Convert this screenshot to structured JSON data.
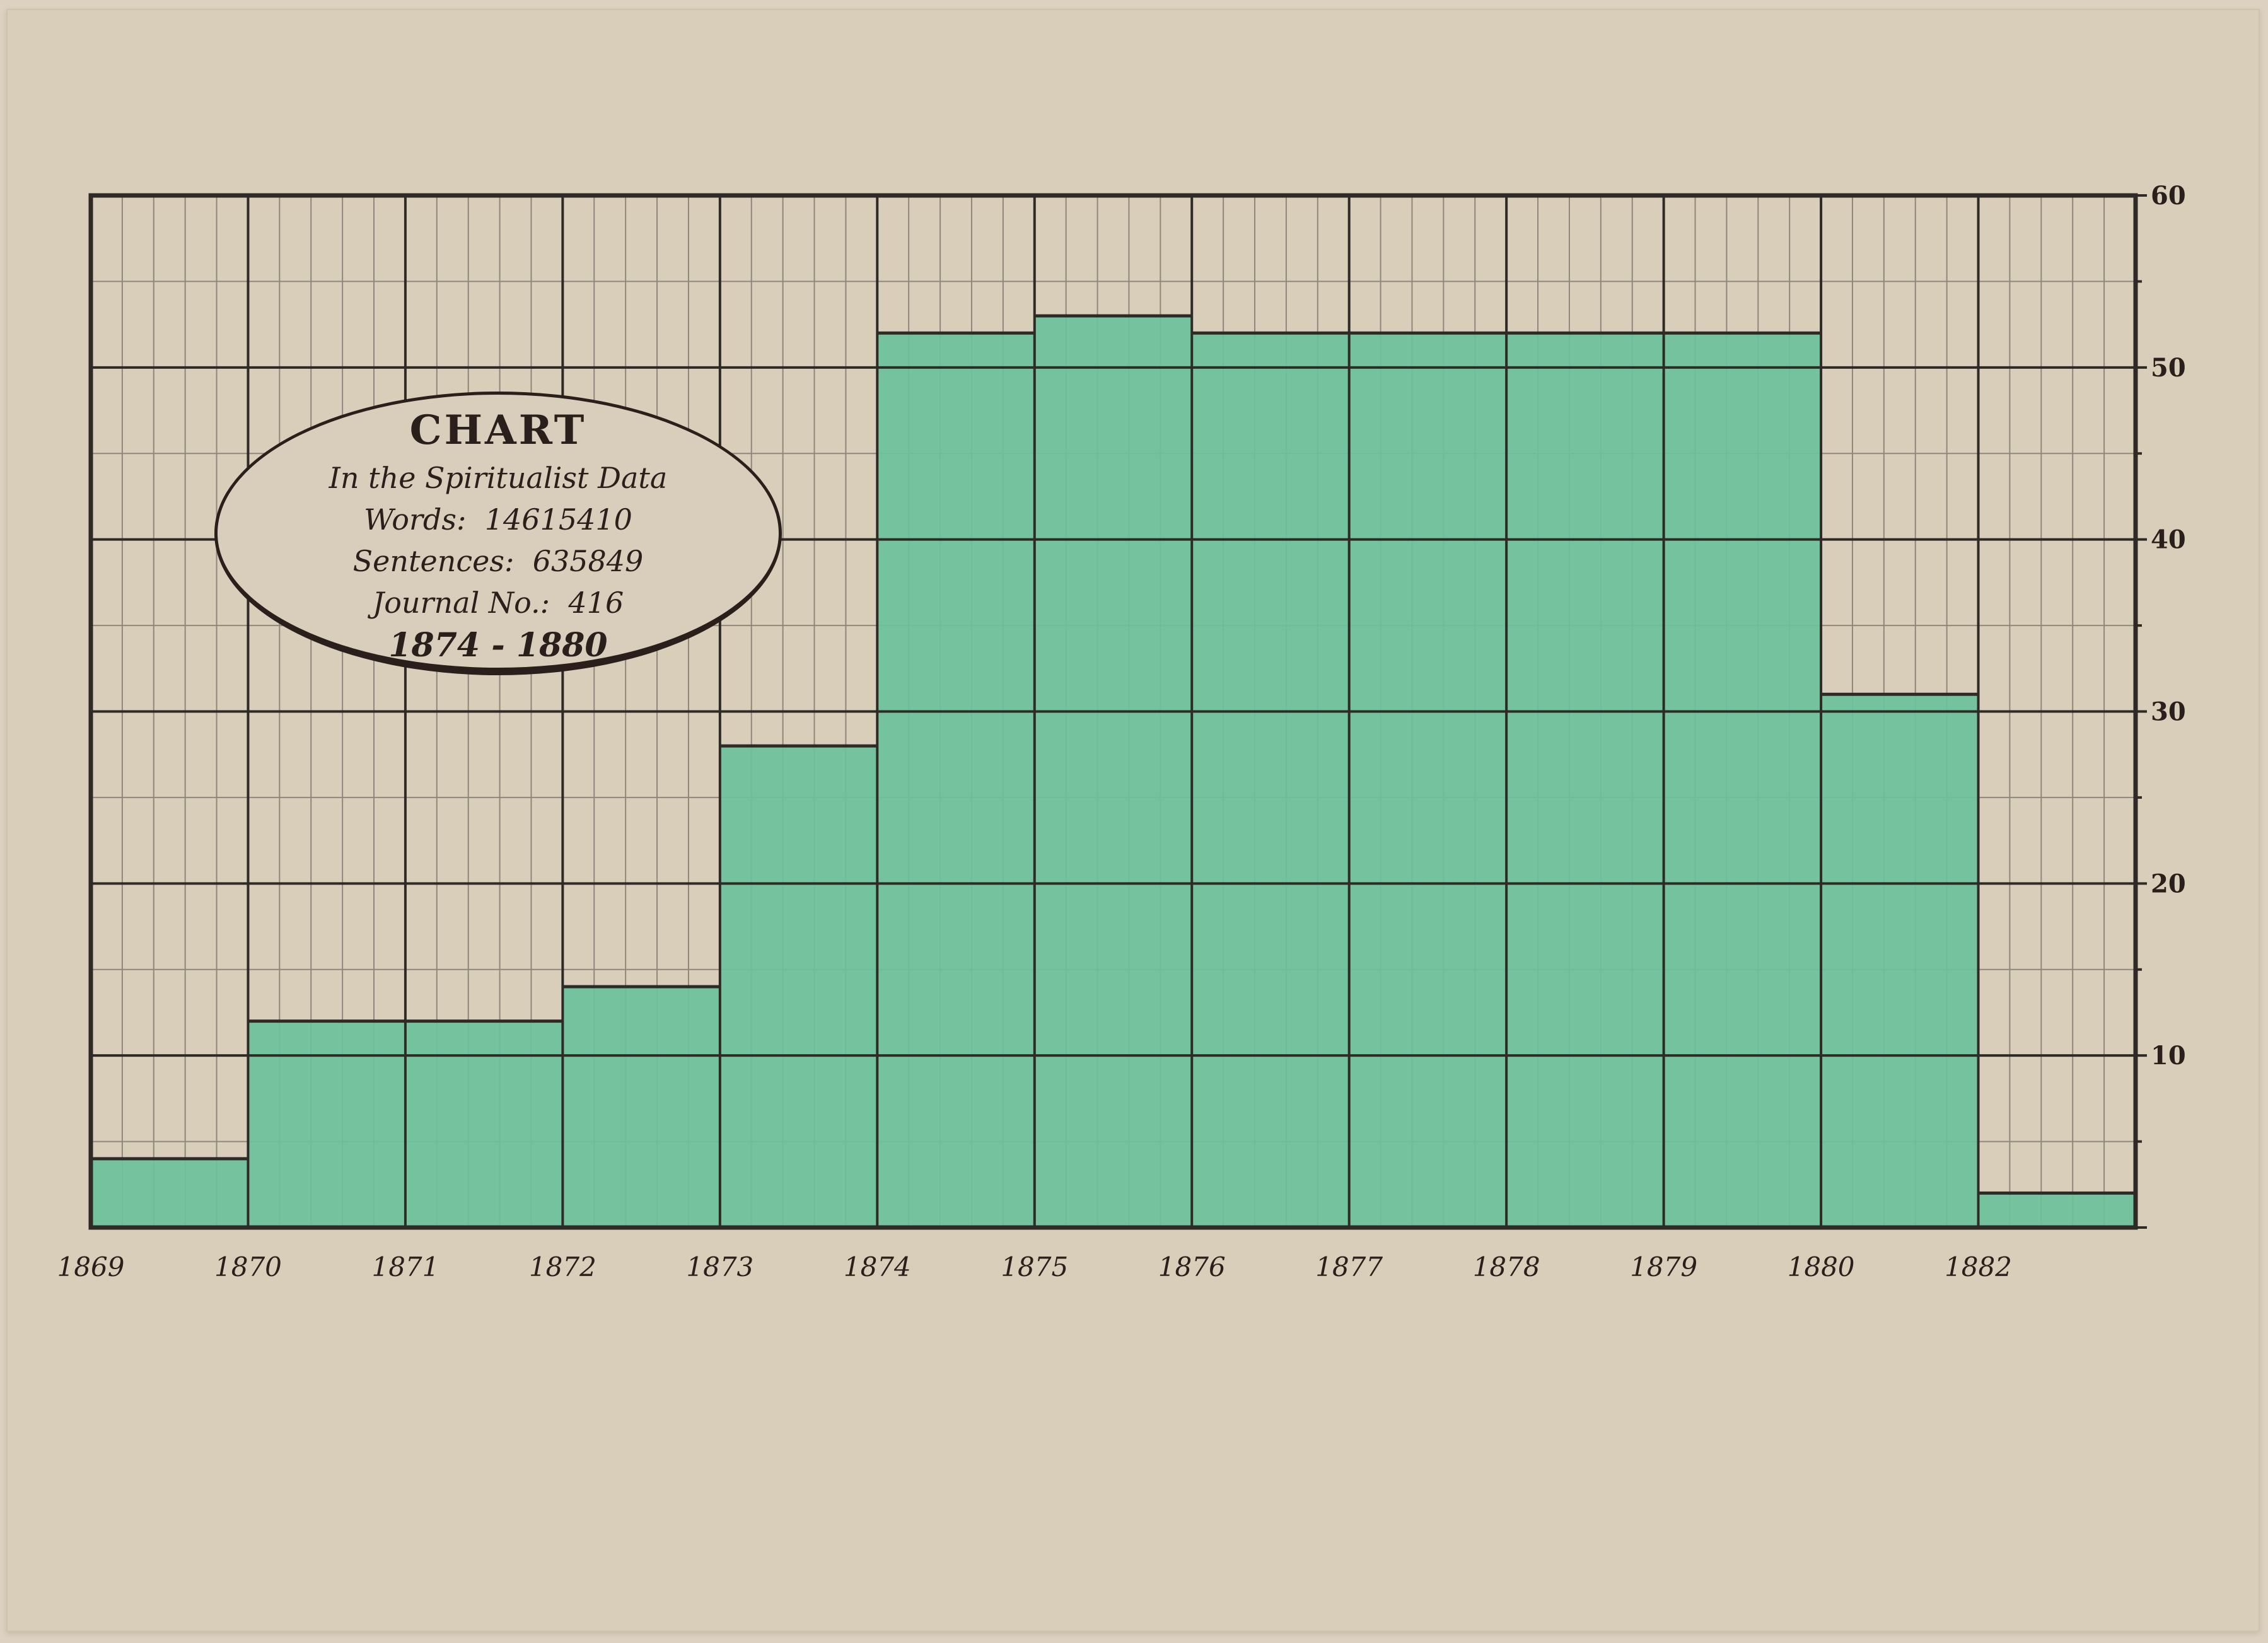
{
  "colors": {
    "paper": "#d9ceba",
    "bar_fill": "#6cc19c",
    "grid_major": "#2e2a26",
    "grid_minor": "#8f877c",
    "ink": "#2a1f1a"
  },
  "cartouche": {
    "title": "CHART",
    "subtitle": "In the Spiritualist Data",
    "words_label": "Words:",
    "words_value": "14615410",
    "sentences_label": "Sentences:",
    "sentences_value": "635849",
    "journal_label": "Journal No.:",
    "journal_value": "416",
    "years": "1874 - 1880"
  },
  "chart_data": {
    "type": "bar",
    "title": "CHART",
    "categories": [
      "1869",
      "1870",
      "1871",
      "1872",
      "1873",
      "1874",
      "1875",
      "1876",
      "1877",
      "1878",
      "1879",
      "1880",
      "1882"
    ],
    "values": [
      4,
      12,
      12,
      14,
      28,
      52,
      53,
      52,
      52,
      52,
      52,
      31,
      2
    ],
    "ylim": [
      0,
      60
    ],
    "yticks": [
      10,
      20,
      30,
      40,
      50,
      60
    ],
    "y_axis_side": "right",
    "grid": true,
    "xlabel": "",
    "ylabel": ""
  }
}
